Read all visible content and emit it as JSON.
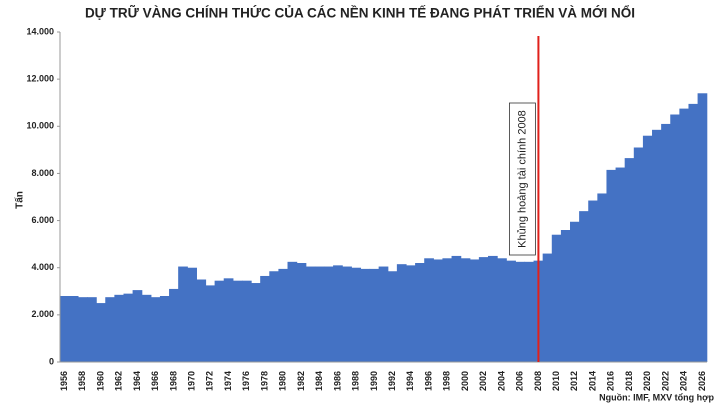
{
  "chart_data": {
    "type": "bar",
    "title": "DỰ TRỮ VÀNG CHÍNH THỨC CỦA CÁC NỀN KINH TẾ ĐANG PHÁT TRIỂN VÀ MỚI NỔI",
    "y_label": "Tấn",
    "source": "Nguồn: IMF, MXV tổng hợp",
    "color": "#4472c4",
    "categories": [
      "1956",
      null,
      "1958",
      null,
      "1960",
      null,
      "1962",
      null,
      "1964",
      null,
      "1966",
      null,
      "1968",
      null,
      "1970",
      null,
      "1972",
      null,
      "1974",
      null,
      "1976",
      null,
      "1978",
      null,
      "1980",
      null,
      "1982",
      null,
      "1984",
      null,
      "1986",
      null,
      "1988",
      null,
      "1990",
      null,
      "1992",
      null,
      "1994",
      null,
      "1996",
      null,
      "1998",
      null,
      "2000",
      null,
      "2002",
      null,
      "2004",
      null,
      "2006",
      null,
      "2008",
      null,
      "2010",
      null,
      "2012",
      null,
      "2014",
      null,
      "2016",
      null,
      "2018",
      null,
      "2020",
      null,
      "2022",
      null,
      "2024",
      null,
      "2026"
    ],
    "values": [
      2800,
      2800,
      2750,
      2750,
      2500,
      2750,
      2850,
      2900,
      3050,
      2850,
      2750,
      2800,
      3100,
      4050,
      4000,
      3500,
      3250,
      3450,
      3550,
      3450,
      3450,
      3350,
      3650,
      3850,
      3950,
      4250,
      4200,
      4050,
      4050,
      4050,
      4100,
      4050,
      4000,
      3950,
      3950,
      4050,
      3850,
      4150,
      4100,
      4200,
      4400,
      4350,
      4400,
      4500,
      4400,
      4350,
      4450,
      4500,
      4400,
      4300,
      4250,
      4250,
      4300,
      4600,
      5400,
      5600,
      5950,
      6400,
      6850,
      7150,
      8150,
      8250,
      8650,
      9100,
      9600,
      9850,
      10100,
      10500,
      10750,
      10950,
      11400
    ],
    "ylim": [
      0,
      14000
    ],
    "yticks": [
      0,
      {
        "value": 2000,
        "label": "2.000"
      },
      {
        "value": 4000,
        "label": "4.000"
      },
      {
        "value": 6000,
        "label": "6.000"
      },
      {
        "value": 8000,
        "label": "8.000"
      },
      {
        "value": 10000,
        "label": "10.000"
      },
      {
        "value": 12000,
        "label": "12.000"
      },
      {
        "value": 14000,
        "label": "14.000"
      }
    ],
    "annotation": {
      "text": "Khủng hoảng tài chính 2008",
      "at": "2008",
      "color": "#e0201b"
    }
  }
}
